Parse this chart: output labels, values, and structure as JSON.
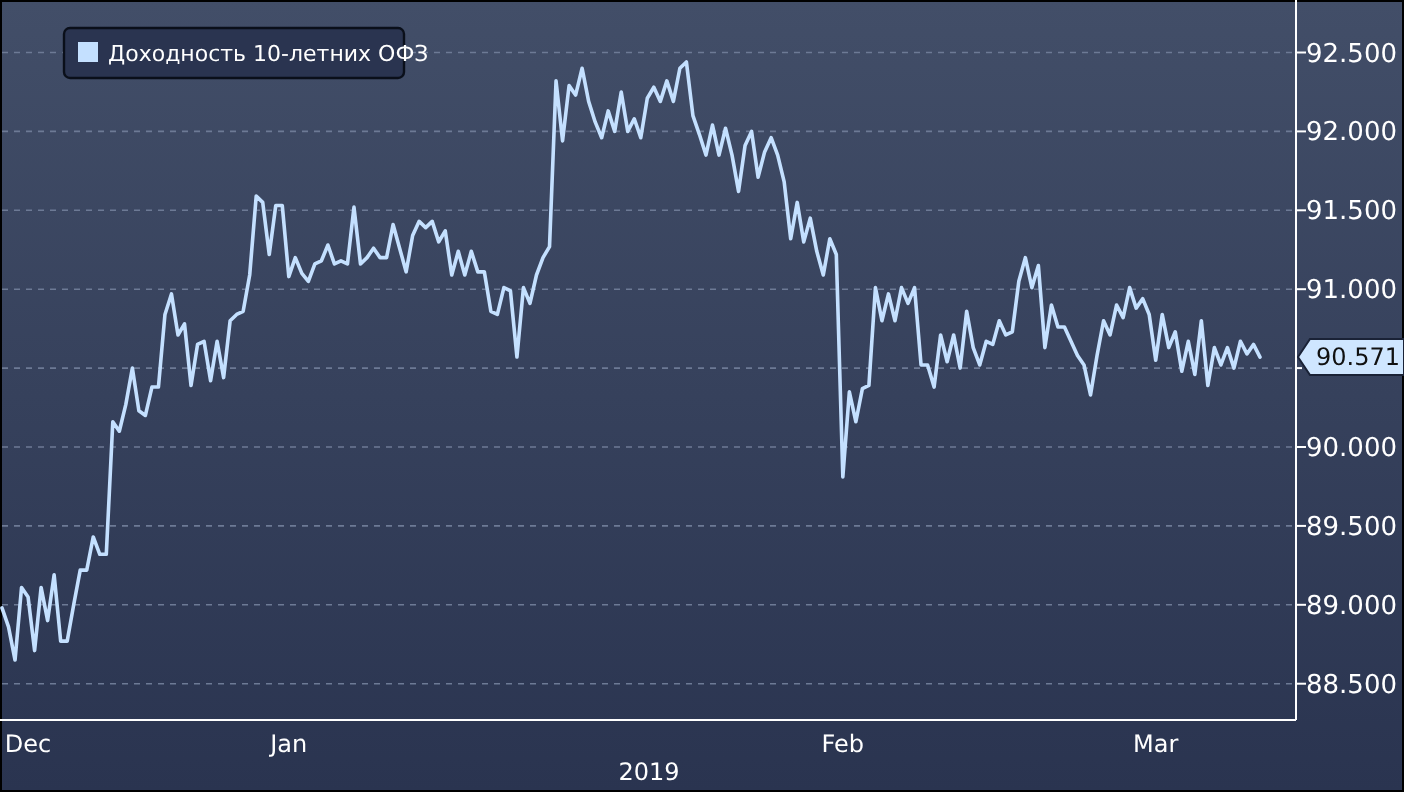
{
  "chart_data": {
    "type": "line",
    "xlabel": "2019",
    "legend": "top left",
    "grid": "y",
    "marker": "none",
    "line_style": "solid",
    "categories": [
      null,
      null,
      null,
      null,
      "Dec",
      null,
      null,
      null,
      null,
      null,
      null,
      null,
      null,
      null,
      null,
      null,
      null,
      null,
      null,
      null,
      null,
      null,
      null,
      null,
      null,
      null,
      null,
      null,
      null,
      null,
      null,
      null,
      null,
      null,
      null,
      null,
      null,
      null,
      null,
      null,
      null,
      null,
      null,
      null,
      "Jan",
      null,
      null,
      null,
      null,
      null,
      null,
      null,
      null,
      null,
      null,
      null,
      null,
      null,
      null,
      null,
      null,
      null,
      null,
      null,
      null,
      null,
      null,
      null,
      null,
      null,
      null,
      null,
      null,
      null,
      null,
      null,
      null,
      null,
      null,
      null,
      null,
      null,
      null,
      null,
      null,
      null,
      null,
      null,
      null,
      null,
      null,
      null,
      null,
      null,
      null,
      null,
      null,
      null,
      null,
      null,
      null,
      null,
      null,
      null,
      null,
      null,
      null,
      null,
      null,
      null,
      null,
      null,
      null,
      null,
      null,
      null,
      null,
      null,
      null,
      null,
      null,
      null,
      null,
      null,
      null,
      null,
      null,
      null,
      null,
      "Feb",
      null,
      null,
      null,
      null,
      null,
      null,
      null,
      null,
      null,
      null,
      null,
      null,
      null,
      null,
      null,
      null,
      null,
      null,
      null,
      null,
      null,
      null,
      null,
      null,
      null,
      null,
      null,
      null,
      null,
      null,
      null,
      null,
      null,
      null,
      null,
      null,
      null,
      null,
      null,
      null,
      null,
      null,
      null,
      null,
      null,
      null,
      null,
      "Mar",
      null,
      null,
      null,
      null,
      null,
      null,
      null,
      null,
      null,
      null,
      null,
      null,
      null,
      null,
      null,
      null
    ],
    "series": [
      {
        "name": "Доходность 10-летних ОФЗ",
        "color": "#c4e0ff",
        "values": [
          88.98,
          88.86,
          88.65,
          89.11,
          89.05,
          88.71,
          89.11,
          88.9,
          89.19,
          88.77,
          88.77,
          89.0,
          89.22,
          89.22,
          89.43,
          89.32,
          89.32,
          90.16,
          90.1,
          90.27,
          90.5,
          90.23,
          90.2,
          90.38,
          90.38,
          90.84,
          90.97,
          90.71,
          90.78,
          90.39,
          90.65,
          90.67,
          90.42,
          90.67,
          90.44,
          90.8,
          90.84,
          90.86,
          91.09,
          91.59,
          91.55,
          91.22,
          91.53,
          91.53,
          91.08,
          91.2,
          91.1,
          91.05,
          91.16,
          91.18,
          91.28,
          91.16,
          91.18,
          91.16,
          91.52,
          91.16,
          91.2,
          91.26,
          91.2,
          91.2,
          91.41,
          91.26,
          91.11,
          91.34,
          91.43,
          91.39,
          91.43,
          91.3,
          91.37,
          91.09,
          91.24,
          91.09,
          91.24,
          91.11,
          91.11,
          90.86,
          90.84,
          91.01,
          90.99,
          90.57,
          91.01,
          90.91,
          91.09,
          91.2,
          91.27,
          92.32,
          91.94,
          92.29,
          92.23,
          92.4,
          92.19,
          92.06,
          91.96,
          92.13,
          92.0,
          92.25,
          92.0,
          92.08,
          91.96,
          92.21,
          92.28,
          92.19,
          92.32,
          92.19,
          92.4,
          92.44,
          92.1,
          91.98,
          91.85,
          92.04,
          91.85,
          92.02,
          91.85,
          91.62,
          91.91,
          92.0,
          91.71,
          91.87,
          91.96,
          91.85,
          91.68,
          91.32,
          91.55,
          91.3,
          91.45,
          91.24,
          91.09,
          91.32,
          91.22,
          89.81,
          90.35,
          90.16,
          90.37,
          90.39,
          91.01,
          90.8,
          90.97,
          90.8,
          91.01,
          90.91,
          91.01,
          90.52,
          90.52,
          90.38,
          90.71,
          90.54,
          90.71,
          90.5,
          90.86,
          90.63,
          90.52,
          90.67,
          90.65,
          90.8,
          90.71,
          90.73,
          91.05,
          91.2,
          91.01,
          91.15,
          90.63,
          90.9,
          90.76,
          90.76,
          90.67,
          90.58,
          90.52,
          90.33,
          90.58,
          90.8,
          90.71,
          90.9,
          90.82,
          91.01,
          90.88,
          90.94,
          90.84,
          90.55,
          90.84,
          90.63,
          90.73,
          90.48,
          90.67,
          90.46,
          90.8,
          90.39,
          90.63,
          90.52,
          90.63,
          90.5,
          90.67,
          90.59,
          90.65,
          90.57
        ]
      }
    ],
    "ylim": [
      88.27,
      92.82
    ],
    "yticks": [
      {
        "value": 88.5,
        "label": "88.500"
      },
      {
        "value": 89,
        "label": "89.000"
      },
      {
        "value": 89.5,
        "label": "89.500"
      },
      {
        "value": 90,
        "label": "90.000"
      },
      {
        "value": 90.5,
        "label": null
      },
      {
        "value": 91,
        "label": "91.000"
      },
      {
        "value": 91.5,
        "label": "91.500"
      },
      {
        "value": 92,
        "label": "92.000"
      },
      {
        "value": 92.5,
        "label": "92.500"
      }
    ],
    "annotations": [
      "90.571"
    ]
  }
}
